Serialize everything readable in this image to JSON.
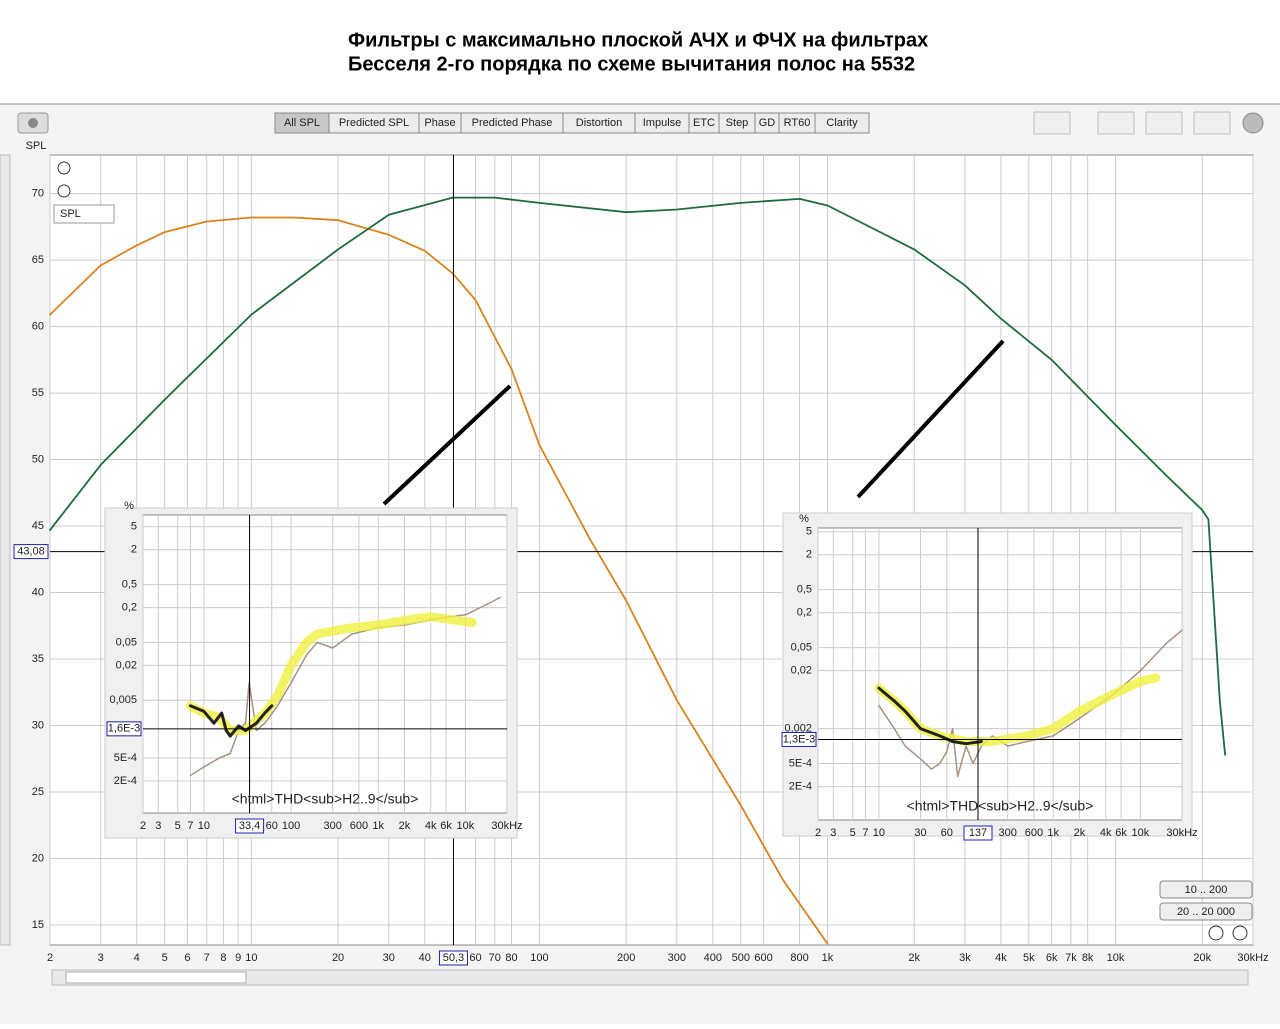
{
  "title_lines": [
    "Фильтры с максимально плоской АЧХ и ФЧХ на фильтрах",
    "Бесселя 2-го порядка по схеме вычитания полос на 5532"
  ],
  "toolbar": [
    "All SPL",
    "Predicted SPL",
    "Phase",
    "Predicted Phase",
    "Distortion",
    "Impulse",
    "ETC",
    "Step",
    "GD",
    "RT60",
    "Clarity"
  ],
  "range_buttons": [
    "10 .. 200",
    "20 .. 20 000"
  ],
  "dropdown": "SPL",
  "chart_data": [
    {
      "type": "line",
      "y_label": "SPL",
      "xlog": true,
      "xlim": [
        2,
        30000
      ],
      "ylim": [
        13.5,
        72.9
      ],
      "yticks": [
        15,
        20,
        25,
        30,
        35,
        40,
        45,
        50,
        55,
        60,
        65,
        70
      ],
      "xticks": [
        2,
        3,
        4,
        5,
        6,
        7,
        8,
        9,
        10,
        20,
        30,
        40,
        60,
        70,
        80,
        100,
        200,
        300,
        400,
        500,
        600,
        800,
        {
          "value": 1000,
          "label": "1k"
        },
        {
          "value": 2000,
          "label": "2k"
        },
        {
          "value": 3000,
          "label": "3k"
        },
        {
          "value": 4000,
          "label": "4k"
        },
        {
          "value": 5000,
          "label": "5k"
        },
        {
          "value": 6000,
          "label": "6k"
        },
        {
          "value": 7000,
          "label": "7k"
        },
        {
          "value": 8000,
          "label": "8k"
        },
        {
          "value": 10000,
          "label": "10k"
        },
        {
          "value": 20000,
          "label": "20k"
        },
        {
          "value": 30000,
          "label": "30kHz"
        }
      ],
      "cursor": {
        "x": {
          "value": 50.3,
          "label": "50,3"
        },
        "y": {
          "value": 43.08,
          "label": "43,08"
        }
      },
      "series": [
        {
          "color": "#d9831f",
          "width": 1.8,
          "x": [
            2,
            3,
            4,
            5,
            7,
            10,
            14,
            20,
            30,
            40,
            50,
            60,
            80,
            100,
            150,
            200,
            300,
            500,
            700,
            1000
          ],
          "values": [
            60.9,
            64.6,
            66.1,
            67.1,
            67.9,
            68.2,
            68.2,
            68.0,
            66.9,
            65.7,
            64.0,
            62.0,
            56.8,
            51.1,
            44.0,
            39.4,
            31.9,
            24.0,
            18.4,
            13.6
          ]
        },
        {
          "color": "#1e6b3c",
          "width": 1.8,
          "x": [
            2,
            3,
            5,
            10,
            20,
            30,
            50,
            70,
            100,
            200,
            300,
            500,
            800,
            1000,
            2000,
            3000,
            4000,
            6000,
            10000,
            15000,
            20000,
            21000,
            23000,
            24000
          ],
          "values": [
            44.7,
            49.6,
            54.5,
            60.9,
            65.8,
            68.4,
            69.7,
            69.7,
            69.3,
            68.6,
            68.8,
            69.3,
            69.6,
            69.1,
            65.8,
            63.1,
            60.6,
            57.5,
            52.6,
            48.8,
            46.2,
            45.5,
            31.9,
            27.8
          ]
        }
      ]
    },
    {
      "type": "line",
      "y_label": "%",
      "xlog": true,
      "ylog": true,
      "xlim": [
        2,
        30000
      ],
      "ylim": [
        5.6e-05,
        8
      ],
      "annotation": "<html>THD<sub>H2..9</sub>",
      "yticks": [
        5,
        2,
        {
          "value": 0.5,
          "label": "0,5"
        },
        {
          "value": 0.2,
          "label": "0,2"
        },
        {
          "value": 0.05,
          "label": "0,05"
        },
        {
          "value": 0.02,
          "label": "0,02"
        },
        {
          "value": 0.005,
          "label": "0,005"
        },
        {
          "value": 0.0005,
          "label": "5E-4"
        },
        {
          "value": 0.0002,
          "label": "2E-4"
        }
      ],
      "xticks": [
        2,
        3,
        5,
        7,
        10,
        60,
        100,
        300,
        600,
        {
          "value": 1000,
          "label": "1k"
        },
        {
          "value": 2000,
          "label": "2k"
        },
        {
          "value": 4000,
          "label": "4k"
        },
        {
          "value": 6000,
          "label": "6k"
        },
        {
          "value": 10000,
          "label": "10k"
        },
        {
          "value": 30000,
          "label": "30kHz"
        }
      ],
      "cursor": {
        "x": {
          "value": 33.4,
          "label": "33,4"
        },
        "y": {
          "value": 0.0016,
          "label": "1,6E-3"
        }
      },
      "series": [
        {
          "color": "#a89080",
          "width": 1.5,
          "x": [
            7,
            10,
            15,
            20,
            25,
            30,
            33,
            40,
            50,
            70,
            100,
            150,
            200,
            300,
            500,
            1000,
            2000,
            5000,
            10000,
            20000,
            25000
          ],
          "values": [
            0.00025,
            0.00035,
            0.0005,
            0.0006,
            0.0015,
            0.002,
            0.01,
            0.0015,
            0.002,
            0.004,
            0.01,
            0.03,
            0.05,
            0.04,
            0.07,
            0.09,
            0.1,
            0.13,
            0.15,
            0.25,
            0.3
          ]
        },
        {
          "color": "#f0f040",
          "width": 9,
          "x": [
            7,
            10,
            15,
            20,
            30,
            50,
            70,
            100,
            150,
            200,
            500,
            1000,
            2000,
            4000,
            8000,
            12000
          ],
          "values": [
            0.004,
            0.003,
            0.0025,
            0.0015,
            0.0015,
            0.003,
            0.006,
            0.02,
            0.05,
            0.07,
            0.09,
            0.1,
            0.12,
            0.14,
            0.12,
            0.11
          ]
        },
        {
          "color": "#222222",
          "width": 3,
          "x": [
            7,
            10,
            13,
            16,
            18,
            20,
            25,
            30,
            40,
            50,
            60
          ],
          "values": [
            0.004,
            0.0032,
            0.002,
            0.003,
            0.0015,
            0.0012,
            0.0018,
            0.0015,
            0.002,
            0.003,
            0.004
          ]
        }
      ]
    },
    {
      "type": "line",
      "y_label": "%",
      "xlog": true,
      "ylog": true,
      "xlim": [
        2,
        30000
      ],
      "ylim": [
        5.3e-05,
        5.8
      ],
      "annotation": "<html>THD<sub>H2..9</sub>",
      "yticks": [
        5,
        2,
        {
          "value": 0.5,
          "label": "0,5"
        },
        {
          "value": 0.2,
          "label": "0,2"
        },
        {
          "value": 0.05,
          "label": "0,05"
        },
        {
          "value": 0.02,
          "label": "0,02"
        },
        {
          "value": 0.002,
          "label": "0,002"
        },
        {
          "value": 0.0005,
          "label": "5E-4"
        },
        {
          "value": 0.0002,
          "label": "2E-4"
        }
      ],
      "xticks": [
        2,
        3,
        5,
        7,
        10,
        30,
        60,
        300,
        600,
        {
          "value": 1000,
          "label": "1k"
        },
        {
          "value": 2000,
          "label": "2k"
        },
        {
          "value": 4000,
          "label": "4k"
        },
        {
          "value": 6000,
          "label": "6k"
        },
        {
          "value": 10000,
          "label": "10k"
        },
        {
          "value": 30000,
          "label": "30kHz"
        }
      ],
      "cursor": {
        "x": {
          "value": 137,
          "label": "137"
        },
        "y": {
          "value": 0.0013,
          "label": "1,3E-3"
        }
      },
      "series": [
        {
          "color": "#a89080",
          "width": 1.5,
          "x": [
            10,
            15,
            20,
            30,
            40,
            50,
            60,
            70,
            80,
            100,
            120,
            150,
            200,
            300,
            500,
            1000,
            2000,
            5000,
            10000,
            20000,
            30000
          ],
          "values": [
            0.005,
            0.002,
            0.001,
            0.0006,
            0.0004,
            0.0005,
            0.0008,
            0.002,
            0.0003,
            0.001,
            0.0005,
            0.001,
            0.0015,
            0.001,
            0.0012,
            0.0015,
            0.003,
            0.008,
            0.02,
            0.06,
            0.1
          ]
        },
        {
          "color": "#f0f040",
          "width": 9,
          "x": [
            10,
            15,
            20,
            30,
            50,
            100,
            200,
            500,
            1000,
            2000,
            5000,
            10000,
            15000
          ],
          "values": [
            0.01,
            0.006,
            0.004,
            0.002,
            0.0015,
            0.0012,
            0.0012,
            0.0015,
            0.002,
            0.004,
            0.008,
            0.013,
            0.015
          ]
        },
        {
          "color": "#222222",
          "width": 3,
          "x": [
            10,
            15,
            20,
            30,
            50,
            70,
            100,
            150
          ],
          "values": [
            0.01,
            0.006,
            0.004,
            0.002,
            0.0015,
            0.0012,
            0.0011,
            0.0012
          ]
        }
      ]
    }
  ]
}
